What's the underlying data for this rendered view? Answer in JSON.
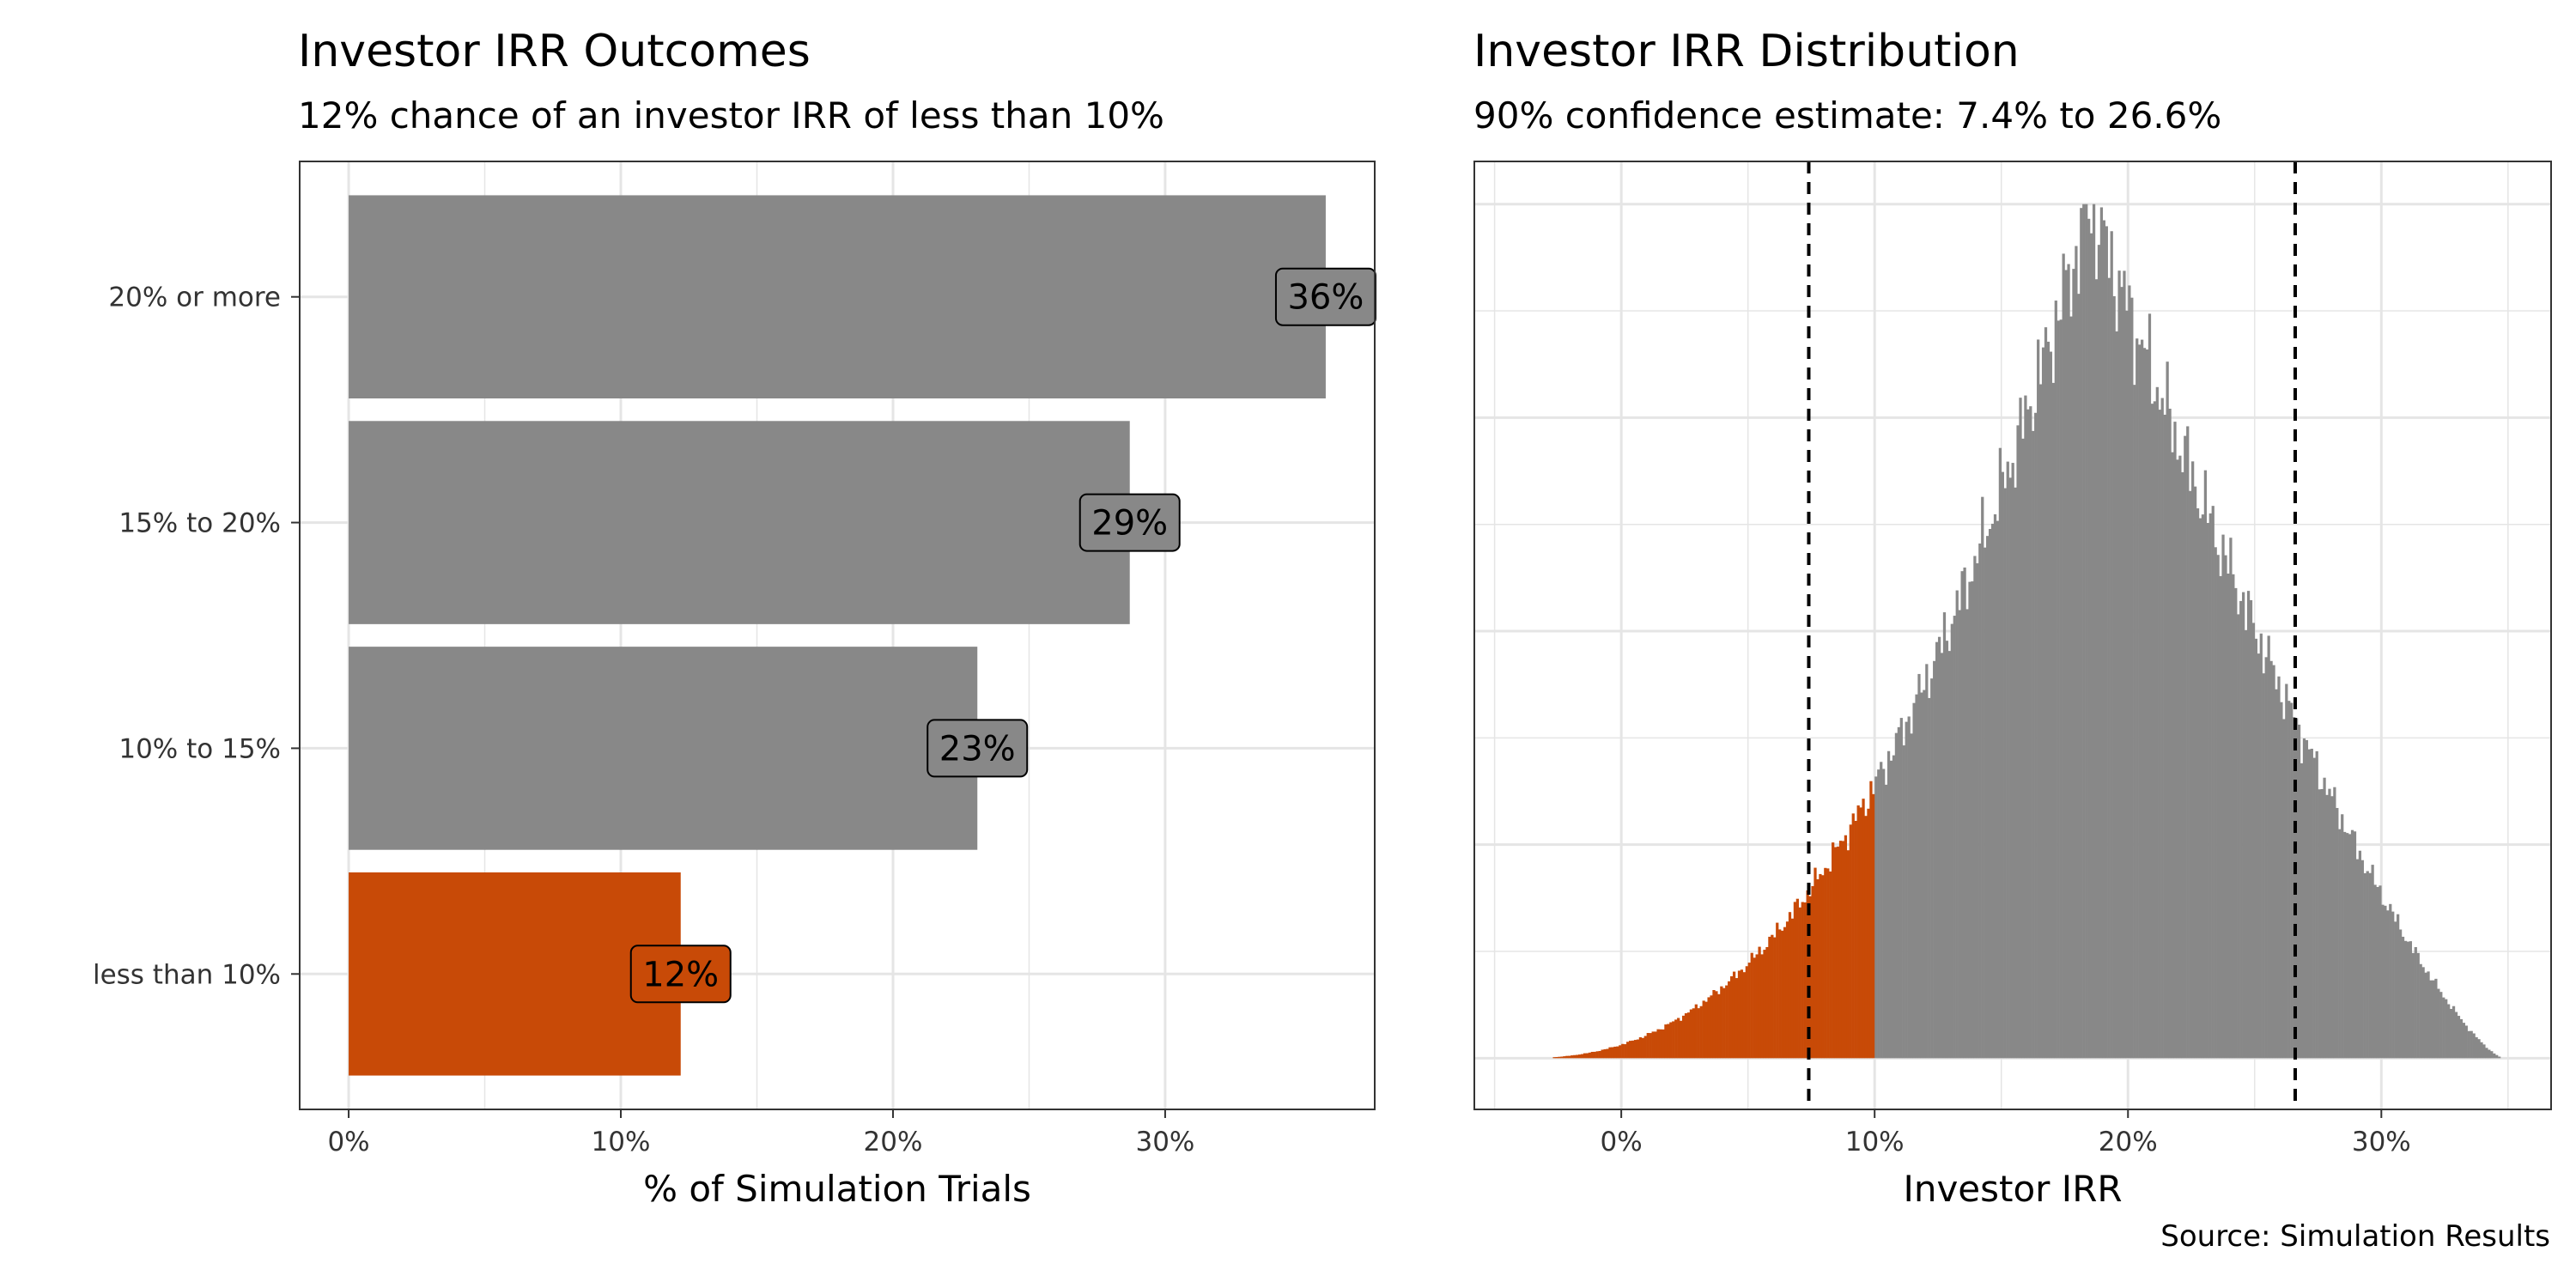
{
  "colors": {
    "highlight": "#C84A07",
    "base": "#888888",
    "grid": "#E5E5E5",
    "panel_border": "#333333",
    "ci_line": "#000000"
  },
  "source": "Source: Simulation Results",
  "chart_data": [
    {
      "type": "bar",
      "orientation": "horizontal",
      "title": "Investor IRR Outcomes",
      "subtitle": "12% chance of an investor IRR of less than 10%",
      "xlabel": "% of Simulation Trials",
      "ylabel": "",
      "categories": [
        "less than 10%",
        "10% to 15%",
        "15% to 20%",
        "20% or more"
      ],
      "values": [
        12.2,
        23.1,
        28.7,
        35.9
      ],
      "data_labels": [
        "12%",
        "23%",
        "29%",
        "36%"
      ],
      "highlighted": [
        true,
        false,
        false,
        false
      ],
      "xlim": [
        -1.8,
        37.7
      ],
      "x_ticks": [
        0,
        10,
        20,
        30
      ],
      "x_tick_labels": [
        "0%",
        "10%",
        "20%",
        "30%"
      ],
      "grid": true
    },
    {
      "type": "histogram",
      "title": "Investor IRR Distribution",
      "subtitle": "90% confidence estimate: 7.4% to 26.6%",
      "xlabel": "Investor IRR",
      "ylabel": "",
      "xlim": [
        -5.8,
        36.7
      ],
      "x_ticks": [
        0,
        10,
        20,
        30
      ],
      "x_tick_labels": [
        "0%",
        "10%",
        "20%",
        "30%"
      ],
      "y_axis_labels_shown": false,
      "bin_range": [
        -4.0,
        34.8
      ],
      "mode": 18.5,
      "highlight_below": 10,
      "ci_lines": [
        7.4,
        26.6
      ],
      "grid": true
    }
  ]
}
